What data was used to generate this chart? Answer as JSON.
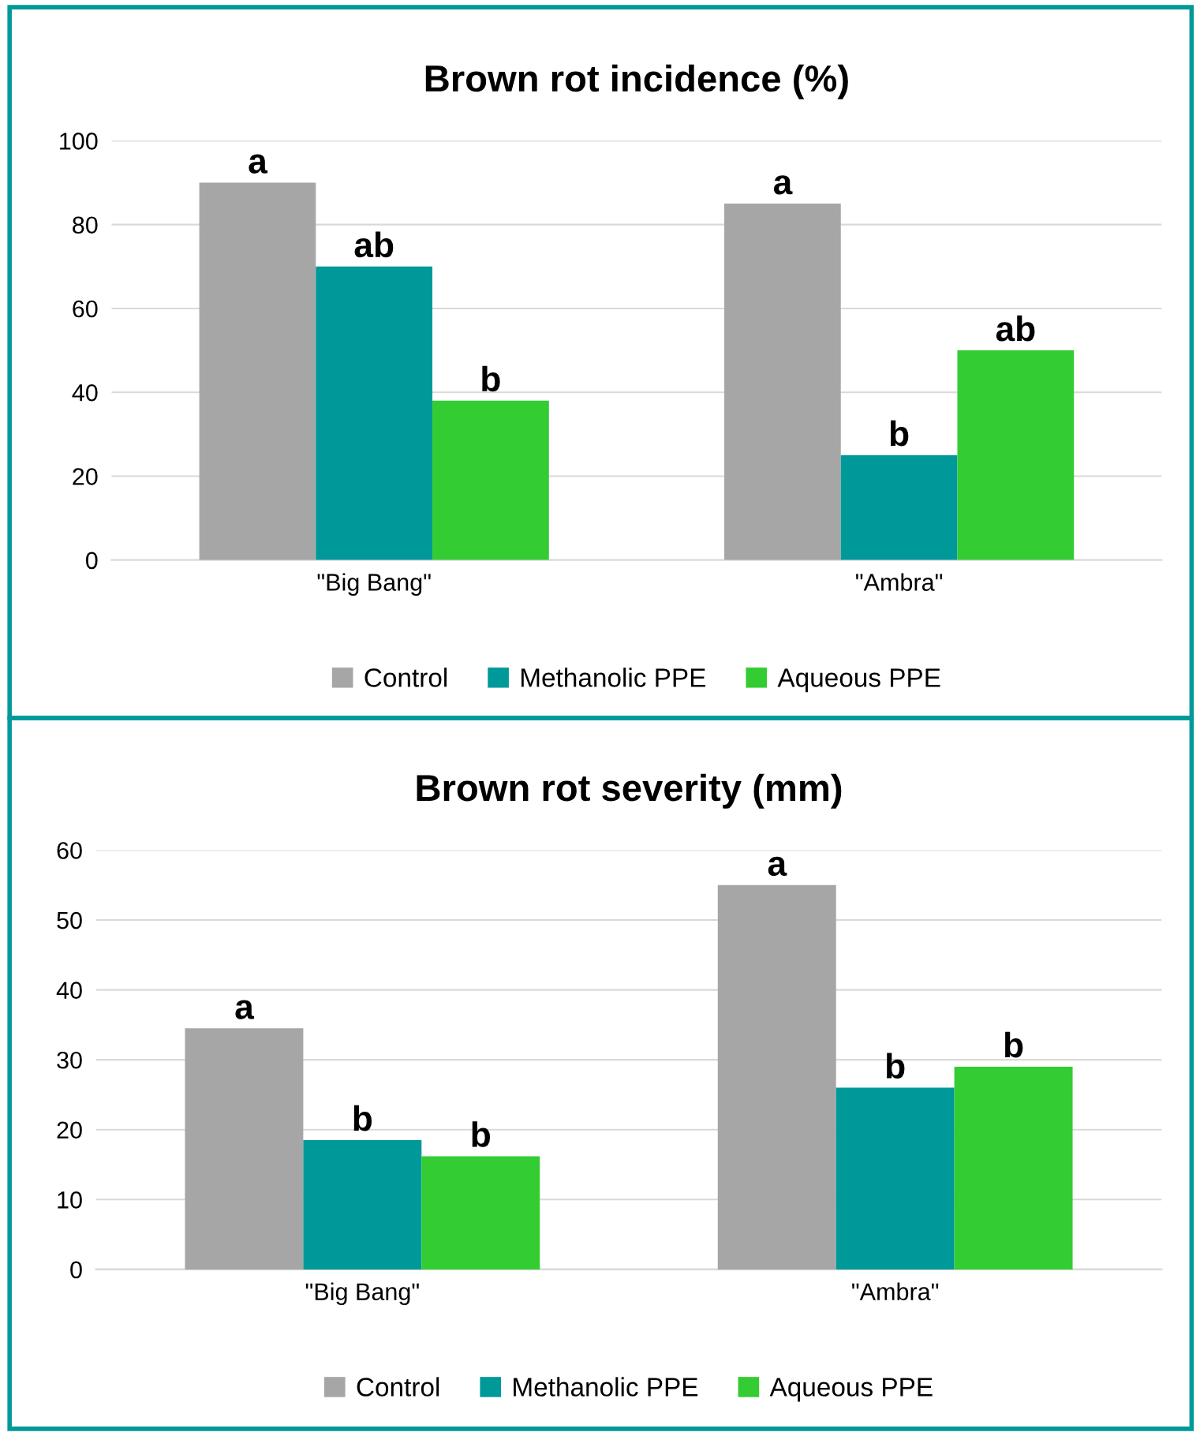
{
  "chart_data": [
    {
      "type": "bar",
      "title": "Brown rot incidence (%)",
      "categories": [
        "\"Big Bang\"",
        "\"Ambra\""
      ],
      "ylim": [
        0,
        100
      ],
      "yticks": [
        0,
        20,
        40,
        60,
        80,
        100
      ],
      "grid": "y",
      "legend": "bottom",
      "series": [
        {
          "name": "Control",
          "color": "#a6a6a6",
          "values": [
            90,
            85
          ],
          "value_labels": [
            "a",
            "a"
          ]
        },
        {
          "name": "Methanolic PPE",
          "color": "#009999",
          "values": [
            70,
            25
          ],
          "value_labels": [
            "ab",
            "b"
          ]
        },
        {
          "name": "Aqueous PPE",
          "color": "#33cc33",
          "values": [
            38,
            50
          ],
          "value_labels": [
            "b",
            "ab"
          ]
        }
      ]
    },
    {
      "type": "bar",
      "title": "Brown rot severity (mm)",
      "categories": [
        "\"Big Bang\"",
        "\"Ambra\""
      ],
      "ylim": [
        0,
        60
      ],
      "yticks": [
        0,
        10,
        20,
        30,
        40,
        50,
        60
      ],
      "grid": "y",
      "legend": "bottom",
      "series": [
        {
          "name": "Control",
          "color": "#a6a6a6",
          "values": [
            34.5,
            55
          ],
          "value_labels": [
            "a",
            "a"
          ]
        },
        {
          "name": "Methanolic PPE",
          "color": "#009999",
          "values": [
            18.5,
            26
          ],
          "value_labels": [
            "b",
            "b"
          ]
        },
        {
          "name": "Aqueous PPE",
          "color": "#33cc33",
          "values": [
            16.2,
            29
          ],
          "value_labels": [
            "b",
            "b"
          ]
        }
      ]
    }
  ]
}
